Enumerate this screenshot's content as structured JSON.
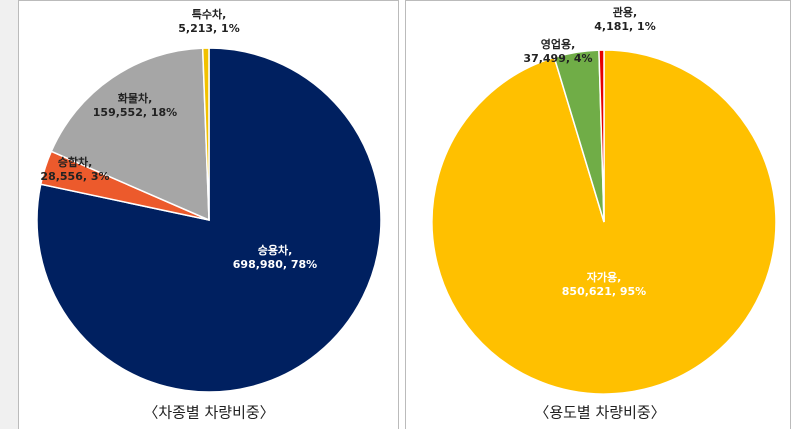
{
  "chart_data": [
    {
      "type": "pie",
      "title": "〈차종별 차량비중〉",
      "categories": [
        "승용차,",
        "승합차,",
        "화물차,",
        "특수차,"
      ],
      "values": [
        698980,
        28556,
        159552,
        5213
      ],
      "value_labels": [
        "698,980, 78%",
        "28,556, 3%",
        "159,552, 18%",
        "5,213, 1%"
      ],
      "colors": [
        "#002060",
        "#ec5a2c",
        "#a6a6a6",
        "#f2c100"
      ]
    },
    {
      "type": "pie",
      "title": "〈용도별 차량비중〉",
      "categories": [
        "자가용,",
        "영업용,",
        "관용,"
      ],
      "values": [
        850621,
        37499,
        4181
      ],
      "value_labels": [
        "850,621, 95%",
        "37,499, 4%",
        "4,181, 1%"
      ],
      "colors": [
        "#ffc000",
        "#70ad47",
        "#e60000"
      ]
    }
  ]
}
